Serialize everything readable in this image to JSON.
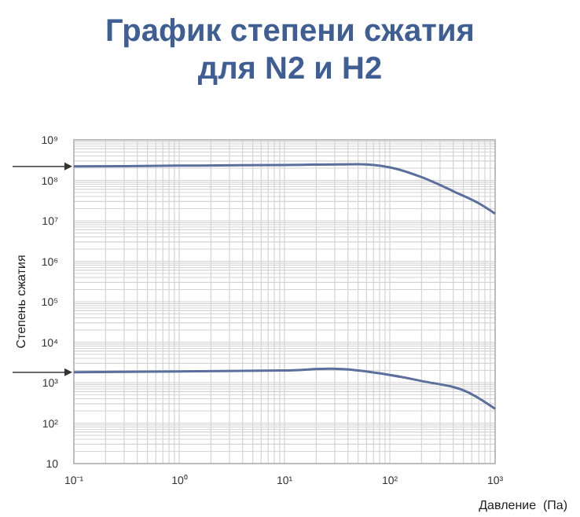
{
  "chart_data": {
    "type": "line",
    "title": "График степени сжатия для N2 и H2",
    "xlabel": "Давление  (Па)",
    "ylabel": "Степень сжатия",
    "log": "xy",
    "grid": true,
    "marker": "none",
    "line_style": "solid",
    "xlim": [
      0.1,
      1000
    ],
    "xticks": [
      {
        "value": 0.1,
        "label": "10⁻¹"
      },
      {
        "value": 1,
        "label": "10⁰"
      },
      {
        "value": 10,
        "label": "10¹"
      },
      {
        "value": 100,
        "label": "10²"
      },
      {
        "value": 1000,
        "label": "10³"
      }
    ],
    "ylim": [
      10,
      1000000000
    ],
    "yticks": [
      10,
      {
        "value": 100,
        "label": "10²"
      },
      {
        "value": 1000,
        "label": "10³"
      },
      {
        "value": 10000,
        "label": "10⁴"
      },
      {
        "value": 100000,
        "label": "10⁵"
      },
      {
        "value": 1000000,
        "label": "10⁶"
      },
      {
        "value": 10000000,
        "label": "10⁷"
      },
      {
        "value": 100000000,
        "label": "10⁸"
      },
      {
        "value": 1000000000,
        "label": "10⁹"
      }
    ],
    "series": [
      {
        "color": "#5b6f9c",
        "x": [
          0.1,
          1,
          10,
          50,
          100,
          200,
          400,
          700,
          1000
        ],
        "values": [
          220000000,
          230000000,
          240000000,
          250000000,
          210000000,
          120000000,
          54000000,
          27000000,
          15000000
        ]
      },
      {
        "color": "#5b6f9c",
        "x": [
          0.1,
          1,
          10,
          28,
          100,
          200,
          560,
          1000
        ],
        "values": [
          1800,
          1900,
          2000,
          2200,
          1550,
          1100,
          570,
          225
        ]
      }
    ]
  }
}
